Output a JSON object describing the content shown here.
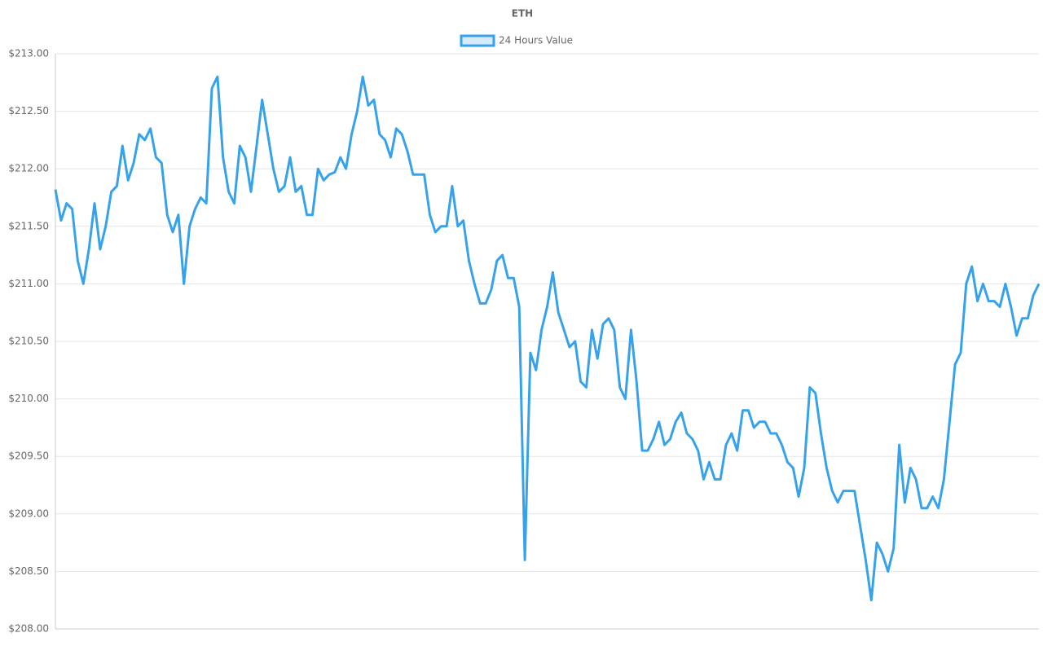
{
  "chart_data": {
    "type": "line",
    "title": "ETH",
    "series": [
      {
        "name": "24 Hours Value",
        "color": "#36a2eb",
        "values": [
          211.82,
          211.55,
          211.7,
          211.65,
          211.2,
          211.0,
          211.3,
          211.7,
          211.3,
          211.5,
          211.8,
          211.85,
          212.2,
          211.9,
          212.05,
          212.3,
          212.25,
          212.35,
          212.1,
          212.05,
          211.6,
          211.45,
          211.6,
          211.0,
          211.5,
          211.65,
          211.75,
          211.7,
          212.7,
          212.8,
          212.1,
          211.8,
          211.7,
          212.2,
          212.1,
          211.8,
          212.2,
          212.6,
          212.3,
          212.0,
          211.8,
          211.85,
          212.1,
          211.8,
          211.85,
          211.6,
          211.6,
          212.0,
          211.9,
          211.95,
          211.97,
          212.1,
          212.0,
          212.3,
          212.5,
          212.8,
          212.55,
          212.6,
          212.3,
          212.25,
          212.1,
          212.35,
          212.3,
          212.15,
          211.95,
          211.95,
          211.95,
          211.6,
          211.45,
          211.5,
          211.5,
          211.85,
          211.5,
          211.55,
          211.2,
          211.0,
          210.83,
          210.83,
          210.95,
          211.2,
          211.25,
          211.05,
          211.05,
          210.8,
          208.6,
          210.4,
          210.25,
          210.6,
          210.8,
          211.1,
          210.75,
          210.6,
          210.45,
          210.5,
          210.15,
          210.1,
          210.6,
          210.35,
          210.65,
          210.7,
          210.6,
          210.1,
          210.0,
          210.6,
          210.15,
          209.55,
          209.55,
          209.65,
          209.8,
          209.6,
          209.65,
          209.8,
          209.88,
          209.7,
          209.65,
          209.55,
          209.3,
          209.45,
          209.3,
          209.3,
          209.6,
          209.7,
          209.55,
          209.9,
          209.9,
          209.75,
          209.8,
          209.8,
          209.7,
          209.7,
          209.6,
          209.45,
          209.4,
          209.15,
          209.4,
          210.1,
          210.05,
          209.7,
          209.4,
          209.2,
          209.1,
          209.2,
          209.2,
          209.2,
          208.9,
          208.6,
          208.25,
          208.75,
          208.65,
          208.5,
          208.7,
          209.6,
          209.1,
          209.4,
          209.3,
          209.05,
          209.05,
          209.15,
          209.05,
          209.3,
          209.8,
          210.3,
          210.4,
          211.0,
          211.15,
          210.85,
          211.0,
          210.85,
          210.85,
          210.8,
          211.0,
          210.8,
          210.55,
          210.7,
          210.7,
          210.9,
          211.0
        ]
      }
    ],
    "ylim": [
      208,
      213
    ],
    "yticks": [
      {
        "value": 208,
        "label": "$208.00"
      },
      {
        "value": 208.5,
        "label": "$208.50"
      },
      {
        "value": 209,
        "label": "$209.00"
      },
      {
        "value": 209.5,
        "label": "$209.50"
      },
      {
        "value": 210,
        "label": "$210.00"
      },
      {
        "value": 210.5,
        "label": "$210.50"
      },
      {
        "value": 211,
        "label": "$211.00"
      },
      {
        "value": 211.5,
        "label": "$211.50"
      },
      {
        "value": 212,
        "label": "$212.00"
      },
      {
        "value": 212.5,
        "label": "$212.50"
      },
      {
        "value": 213,
        "label": "$213.00"
      }
    ],
    "grid": true,
    "legend": "top"
  }
}
